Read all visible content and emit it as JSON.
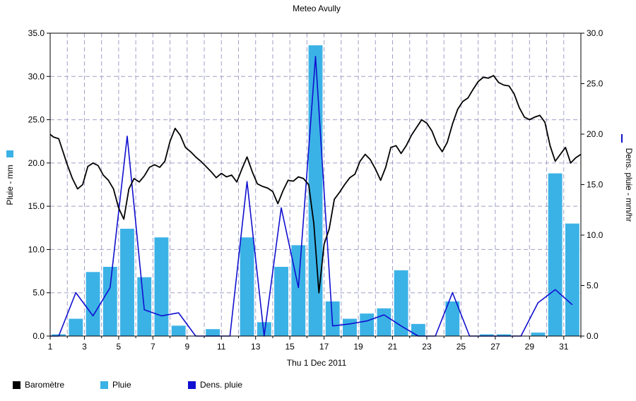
{
  "chart_data": {
    "type": "bar",
    "title": "Meteo  Avully",
    "xlabel": "Thu 1 Dec 2011",
    "ylabel_left": "Pluie - mm",
    "ylabel_right": "Dens. pluie - mm/hr",
    "x_ticks": [
      "1",
      "3",
      "5",
      "7",
      "9",
      "11",
      "13",
      "15",
      "17",
      "19",
      "21",
      "23",
      "25",
      "27",
      "29",
      "31"
    ],
    "y_left_ticks": [
      "0.0",
      "5.0",
      "10.0",
      "15.0",
      "20.0",
      "25.0",
      "30.0",
      "35.0"
    ],
    "y_right_ticks": [
      "0.0",
      "5.0",
      "10.0",
      "15.0",
      "20.0",
      "25.0",
      "30.0"
    ],
    "ylim_left": [
      0,
      35
    ],
    "ylim_right": [
      0,
      30
    ],
    "xlim": [
      1,
      32
    ],
    "grid": true,
    "legend_position": "bottom",
    "colors": {
      "barometre": "#000000",
      "pluie": "#3bb2e6",
      "dens": "#1010d0",
      "grid": "#a0a0c8"
    },
    "series": [
      {
        "name": "Pluie",
        "kind": "bar",
        "axis": "left",
        "x": [
          1.5,
          2.5,
          3.5,
          4.5,
          5.5,
          6.5,
          7.5,
          8.5,
          10.5,
          12.5,
          13.5,
          14.5,
          15.5,
          16.5,
          17.5,
          18.5,
          19.5,
          20.5,
          21.5,
          22.5,
          24.5,
          26.5,
          27.5,
          29.5,
          30.5,
          31.5
        ],
        "values": [
          0.2,
          2.0,
          7.4,
          8.0,
          12.4,
          6.8,
          11.4,
          1.2,
          0.8,
          11.4,
          1.6,
          8.0,
          10.5,
          33.6,
          4.0,
          2.0,
          2.6,
          3.2,
          7.6,
          1.4,
          4.0,
          0.2,
          0.2,
          0.4,
          18.8,
          13.0
        ]
      },
      {
        "name": "Dens. pluie",
        "kind": "line",
        "axis": "right",
        "x": [
          1,
          1.5,
          2.5,
          3.5,
          4.5,
          5.5,
          6.5,
          7.5,
          8.5,
          9.5,
          11.5,
          12.5,
          13.5,
          14.5,
          15.5,
          16.5,
          17.5,
          18.5,
          19.5,
          20.5,
          21.5,
          22.5,
          23.5,
          24.5,
          25.5,
          26.5,
          27.5,
          28.5,
          29.5,
          30.5,
          31.5
        ],
        "values": [
          0,
          0,
          4.3,
          2.0,
          4.8,
          19.8,
          2.6,
          2.0,
          2.3,
          0,
          0,
          15.3,
          0,
          12.7,
          4.8,
          27.7,
          1.0,
          1.2,
          1.5,
          2.1,
          1.0,
          0,
          0,
          4.3,
          0,
          0,
          0,
          0,
          3.3,
          4.6,
          3.1
        ]
      },
      {
        "name": "Baromètre",
        "kind": "line",
        "axis": "left",
        "x": [
          1,
          1.2,
          1.5,
          1.8,
          2,
          2.3,
          2.6,
          2.9,
          3.2,
          3.5,
          3.8,
          4.1,
          4.4,
          4.7,
          5,
          5.3,
          5.6,
          5.9,
          6.2,
          6.5,
          6.8,
          7.1,
          7.4,
          7.7,
          8,
          8.3,
          8.6,
          8.9,
          9.2,
          9.5,
          9.8,
          10.1,
          10.4,
          10.7,
          11,
          11.3,
          11.6,
          11.9,
          12.2,
          12.5,
          12.8,
          13.1,
          13.4,
          13.7,
          14,
          14.3,
          14.6,
          14.9,
          15.2,
          15.5,
          15.8,
          16.1,
          16.4,
          16.7,
          17,
          17.3,
          17.6,
          17.9,
          18.2,
          18.5,
          18.8,
          19.1,
          19.4,
          19.7,
          20,
          20.3,
          20.6,
          20.9,
          21.2,
          21.5,
          21.8,
          22.1,
          22.4,
          22.7,
          23,
          23.3,
          23.6,
          23.9,
          24.2,
          24.5,
          24.8,
          25.1,
          25.4,
          25.7,
          26,
          26.3,
          26.6,
          26.9,
          27.2,
          27.5,
          27.8,
          28.1,
          28.4,
          28.7,
          29,
          29.3,
          29.6,
          29.9,
          30.2,
          30.5,
          30.8,
          31.1,
          31.4,
          31.7,
          32
        ],
        "values": [
          23.3,
          23.0,
          22.8,
          21.0,
          19.8,
          18.2,
          17.0,
          17.5,
          19.6,
          20.0,
          19.7,
          18.6,
          18.0,
          17.0,
          14.8,
          13.5,
          17.0,
          18.2,
          17.8,
          18.5,
          19.5,
          19.8,
          19.5,
          20.2,
          22.5,
          24.0,
          23.2,
          21.8,
          21.3,
          20.7,
          20.2,
          19.6,
          19.0,
          18.3,
          18.8,
          18.4,
          18.6,
          17.8,
          19.3,
          20.7,
          19.0,
          17.6,
          17.3,
          17.1,
          16.7,
          15.3,
          16.8,
          18.0,
          17.9,
          18.4,
          18.2,
          17.5,
          13.0,
          5.0,
          10.6,
          12.4,
          15.8,
          16.6,
          17.5,
          18.3,
          18.7,
          20.2,
          21.0,
          20.4,
          19.3,
          18.0,
          19.5,
          21.8,
          22.0,
          21.1,
          22.0,
          23.2,
          24.1,
          25.0,
          24.6,
          23.7,
          22.2,
          21.3,
          22.4,
          24.5,
          26.2,
          27.1,
          27.5,
          28.5,
          29.4,
          29.9,
          29.8,
          30.1,
          29.3,
          29.0,
          28.9,
          28.0,
          26.4,
          25.3,
          25.0,
          25.3,
          25.5,
          24.7,
          22.0,
          20.2,
          21.0,
          21.8,
          20.0,
          20.6,
          21.0
        ]
      }
    ]
  },
  "legend": [
    {
      "label": "Baromètre",
      "color": "#000000"
    },
    {
      "label": "Pluie",
      "color": "#3bb2e6"
    },
    {
      "label": "Dens. pluie",
      "color": "#1010d0"
    }
  ]
}
